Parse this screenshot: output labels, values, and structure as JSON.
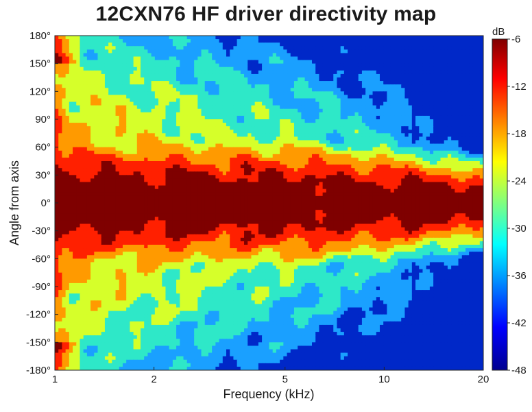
{
  "chart_data": {
    "type": "heatmap",
    "title": "12CXN76 HF driver directivity map",
    "xlabel": "Frequency (kHz)",
    "ylabel": "Angle from axis",
    "x_scale": "log",
    "xlim": [
      1,
      20
    ],
    "ylim": [
      -180,
      180
    ],
    "x_ticks": [
      1,
      2,
      5,
      10,
      20
    ],
    "x_tick_labels": [
      "1",
      "2",
      "5",
      "10",
      "20"
    ],
    "y_ticks": [
      180,
      150,
      120,
      90,
      60,
      30,
      0,
      -30,
      -60,
      -90,
      -120,
      -150,
      -180
    ],
    "y_tick_labels": [
      "180°",
      "150°",
      "120°",
      "90°",
      "60°",
      "30°",
      "0°",
      "-30°",
      "-60°",
      "-90°",
      "-120°",
      "-150°",
      "-180°"
    ],
    "colorbar": {
      "unit_label": "dB",
      "range": [
        -48,
        -6
      ],
      "ticks": [
        -6,
        -12,
        -18,
        -24,
        -30,
        -36,
        -42,
        -48
      ],
      "tick_labels": [
        "-6",
        "-12",
        "-18",
        "-24",
        "-30",
        "-36",
        "-42",
        "-48"
      ],
      "colormap": "jet"
    },
    "contour_levels": [
      -9,
      -15,
      -21,
      -27,
      -33,
      -39
    ],
    "level_colors": [
      "#7f0000",
      "#ff2000",
      "#ff9a00",
      "#d6ff2a",
      "#2ee8c8",
      "#1aa0ff",
      "#0028c8"
    ],
    "description_model": {
      "frequencies_khz": [
        1,
        1.5,
        2,
        3,
        4,
        5,
        6,
        8,
        10,
        12,
        15,
        20
      ],
      "neg6dB_halfwidth_deg": [
        45,
        44,
        43,
        41,
        40,
        40,
        38,
        35,
        33,
        30,
        28,
        22
      ]
    },
    "grid": false,
    "legend": "colorbar-right"
  }
}
